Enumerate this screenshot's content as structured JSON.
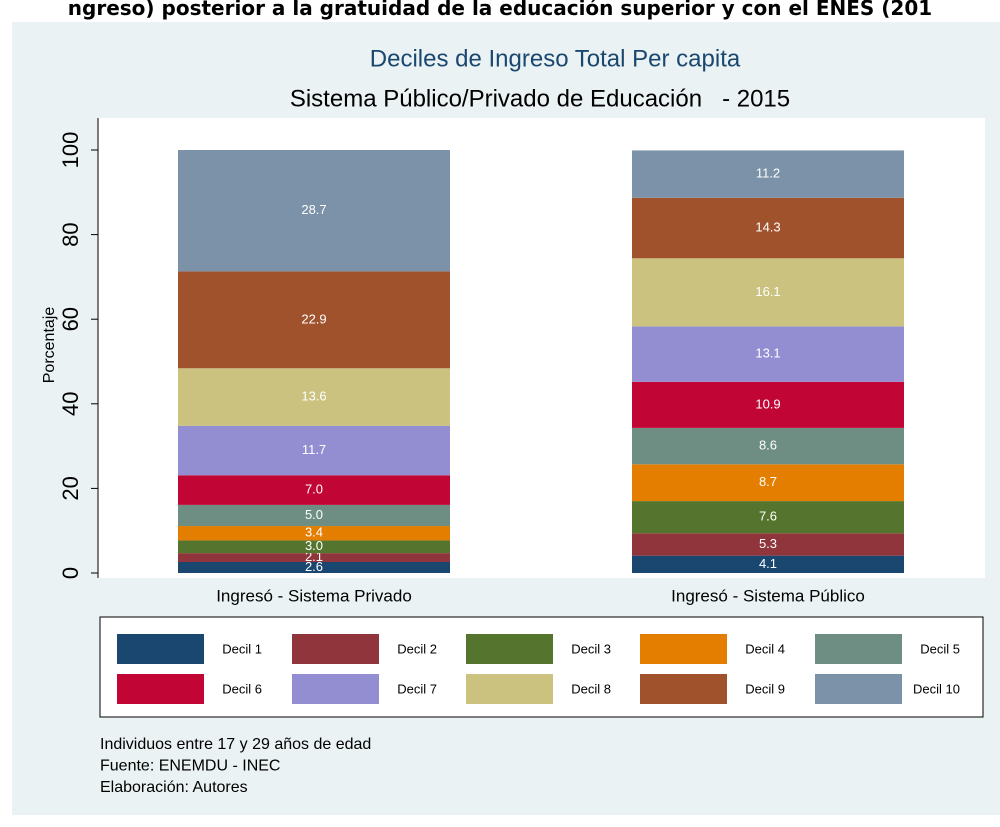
{
  "page_heading": "ngreso) posterior a la gratuidad de la educación superior y con el ENES (201",
  "chart_data": {
    "type": "stacked_bar",
    "title": "Deciles de Ingreso Total Per capita",
    "subtitle": "Sistema Público/Privado de Educación   - 2015",
    "y_label": "Porcentaje",
    "categories": [
      "Ingresó - Sistema Privado",
      "Ingresó - Sistema Público"
    ],
    "ylim": [
      0,
      107
    ],
    "yticks": [
      0,
      20,
      40,
      60,
      80,
      100
    ],
    "grid": false,
    "series": [
      {
        "name": "Decil 1",
        "color": "#1a476f",
        "values": [
          2.6,
          4.1
        ],
        "value_labels": [
          "2.6",
          "4.1"
        ]
      },
      {
        "name": "Decil 2",
        "color": "#90353b",
        "values": [
          2.1,
          5.3
        ],
        "value_labels": [
          "2.1",
          "5.3"
        ]
      },
      {
        "name": "Decil 3",
        "color": "#55752f",
        "values": [
          3.0,
          7.6
        ],
        "value_labels": [
          "3.0",
          "7.6"
        ]
      },
      {
        "name": "Decil 4",
        "color": "#e37e00",
        "values": [
          3.4,
          8.7
        ],
        "value_labels": [
          "3.4",
          "8.7"
        ]
      },
      {
        "name": "Decil 5",
        "color": "#6e8e84",
        "values": [
          5.0,
          8.6
        ],
        "value_labels": [
          "5.0",
          "8.6"
        ]
      },
      {
        "name": "Decil 6",
        "color": "#c10534",
        "values": [
          7.0,
          10.9
        ],
        "value_labels": [
          "7.0",
          "10.9"
        ]
      },
      {
        "name": "Decil 7",
        "color": "#938dd2",
        "values": [
          11.7,
          13.1
        ],
        "value_labels": [
          "11.7",
          "13.1"
        ]
      },
      {
        "name": "Decil 8",
        "color": "#cac27e",
        "values": [
          13.6,
          16.1
        ],
        "value_labels": [
          "13.6",
          "16.1"
        ]
      },
      {
        "name": "Decil 9",
        "color": "#a0522d",
        "values": [
          22.9,
          14.3
        ],
        "value_labels": [
          "22.9",
          "14.3"
        ]
      },
      {
        "name": "Decil 10",
        "color": "#7b92a8",
        "values": [
          28.7,
          11.2
        ],
        "value_labels": [
          "28.7",
          "11.2"
        ]
      }
    ],
    "notes": [
      "Individuos entre 17 y 29 años de edad",
      "Fuente: ENEMDU - INEC",
      "Elaboración: Autores"
    ]
  }
}
